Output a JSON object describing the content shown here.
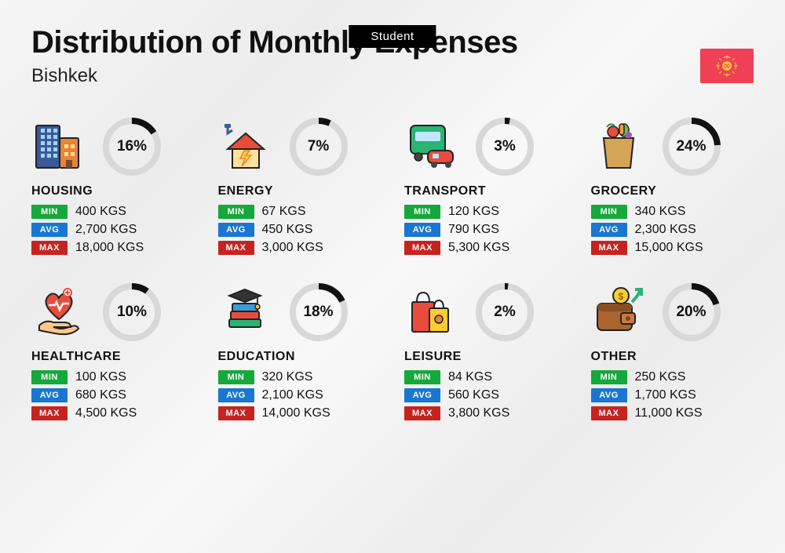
{
  "badge": "Student",
  "title": "Distribution of Monthly Expenses",
  "subtitle": "Bishkek",
  "currency": "KGS",
  "labels": {
    "min": "MIN",
    "avg": "AVG",
    "max": "MAX"
  },
  "colors": {
    "badge_bg": "#000000",
    "min_bg": "#15a83a",
    "avg_bg": "#1976d2",
    "max_bg": "#c62320",
    "ring_track": "#d8d8d8",
    "ring_fill": "#111111",
    "flag_bg": "#ef4056",
    "flag_sun": "#ffcc33"
  },
  "ring": {
    "radius": 33,
    "stroke_width": 8,
    "size": 76
  },
  "categories": [
    {
      "key": "housing",
      "name": "HOUSING",
      "percent": 16,
      "min": "400",
      "avg": "2,700",
      "max": "18,000",
      "icon": "buildings"
    },
    {
      "key": "energy",
      "name": "ENERGY",
      "percent": 7,
      "min": "67",
      "avg": "450",
      "max": "3,000",
      "icon": "energy-house"
    },
    {
      "key": "transport",
      "name": "TRANSPORT",
      "percent": 3,
      "min": "120",
      "avg": "790",
      "max": "5,300",
      "icon": "bus-car"
    },
    {
      "key": "grocery",
      "name": "GROCERY",
      "percent": 24,
      "min": "340",
      "avg": "2,300",
      "max": "15,000",
      "icon": "grocery-bag"
    },
    {
      "key": "healthcare",
      "name": "HEALTHCARE",
      "percent": 10,
      "min": "100",
      "avg": "680",
      "max": "4,500",
      "icon": "heart-hand"
    },
    {
      "key": "education",
      "name": "EDUCATION",
      "percent": 18,
      "min": "320",
      "avg": "2,100",
      "max": "14,000",
      "icon": "grad-books"
    },
    {
      "key": "leisure",
      "name": "LEISURE",
      "percent": 2,
      "min": "84",
      "avg": "560",
      "max": "3,800",
      "icon": "shopping-bags"
    },
    {
      "key": "other",
      "name": "OTHER",
      "percent": 20,
      "min": "250",
      "avg": "1,700",
      "max": "11,000",
      "icon": "wallet-arrow"
    }
  ]
}
